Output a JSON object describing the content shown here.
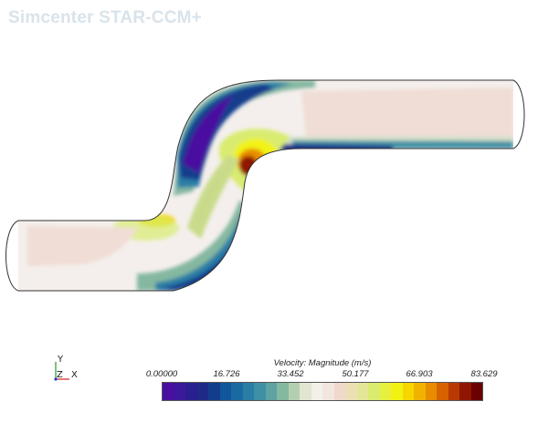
{
  "app": {
    "watermark": "Simcenter STAR-CCM+"
  },
  "triad": {
    "y_label": "Y",
    "z_label": "Z",
    "x_label": "X"
  },
  "legend": {
    "title": "Velocity: Magnitude (m/s)",
    "ticks": [
      "0.00000",
      "16.726",
      "33.452",
      "50.177",
      "66.903",
      "83.629"
    ],
    "colors": [
      "#4a0fa0",
      "#3a1a9a",
      "#2a1f8e",
      "#1d2a88",
      "#133d8c",
      "#11559a",
      "#1a6aa2",
      "#2a7ea6",
      "#3f90a4",
      "#5ea2a2",
      "#85b8a0",
      "#b4cfb0",
      "#e0e6d2",
      "#f3f0ea",
      "#f2e6df",
      "#efd8cc",
      "#ecdfb4",
      "#e5e59a",
      "#d9ec6f",
      "#e6f03f",
      "#f2f212",
      "#f7d600",
      "#f2b200",
      "#e88c00",
      "#d86200",
      "#b93a00",
      "#8f1600",
      "#6a0000"
    ]
  }
}
